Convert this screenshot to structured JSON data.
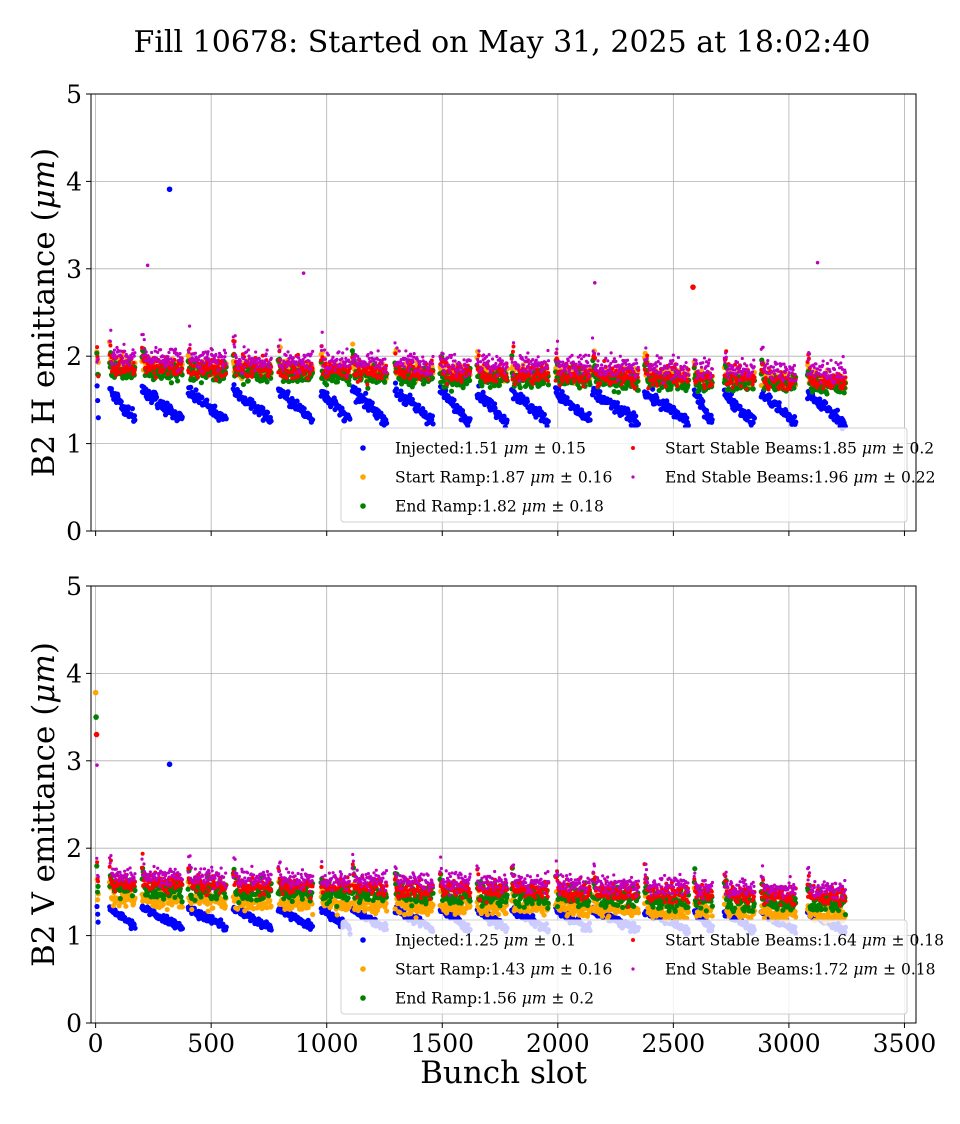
{
  "title": "Fill 10678: Started on May 31, 2025 at 18:02:40",
  "chart_data": [
    {
      "type": "scatter",
      "ylabel_base": "B2 H emittance (",
      "ylabel_unit": "μm",
      "ylabel_close": ")",
      "xlabel": "",
      "xlim": [
        -20,
        3550
      ],
      "ylim": [
        0,
        5
      ],
      "xticks": [
        0,
        500,
        1000,
        1500,
        2000,
        2500,
        3000,
        3500
      ],
      "yticks": [
        0,
        1,
        2,
        3,
        4,
        5
      ],
      "show_xtick_labels": false,
      "grid": true,
      "legend_position": "lower-right",
      "series": [
        {
          "name": "Injected",
          "mean": 1.51,
          "std": 0.15,
          "color": "#0000ff",
          "base": 1.62,
          "drop": 0.34
        },
        {
          "name": "Start Ramp",
          "mean": 1.87,
          "std": 0.16,
          "color": "#ffa500",
          "base": 1.9,
          "drop": 0.0
        },
        {
          "name": "End Ramp",
          "mean": 1.82,
          "std": 0.18,
          "color": "#008000",
          "base": 1.84,
          "drop": 0.0
        },
        {
          "name": "Start Stable Beams",
          "mean": 1.85,
          "std": 0.2,
          "color": "#ff0000",
          "base": 1.9,
          "drop": 0.0
        },
        {
          "name": "End Stable Beams",
          "mean": 1.96,
          "std": 0.22,
          "color": "#bf00bf",
          "base": 2.0,
          "drop": 0.0
        }
      ],
      "outliers": [
        {
          "x": 320,
          "y": 3.91,
          "series": 0
        },
        {
          "x": 2585,
          "y": 2.79,
          "series": 3
        },
        {
          "x": 3124,
          "y": 3.07,
          "series": 4
        },
        {
          "x": 225,
          "y": 3.04,
          "series": 4
        },
        {
          "x": 900,
          "y": 2.95,
          "series": 4
        },
        {
          "x": 2160,
          "y": 2.84,
          "series": 4
        }
      ]
    },
    {
      "type": "scatter",
      "ylabel_base": "B2 V emittance (",
      "ylabel_unit": "μm",
      "ylabel_close": ")",
      "xlabel": "Bunch slot",
      "xlim": [
        -20,
        3550
      ],
      "ylim": [
        0,
        5
      ],
      "xticks": [
        0,
        500,
        1000,
        1500,
        2000,
        2500,
        3000,
        3500
      ],
      "yticks": [
        0,
        1,
        2,
        3,
        4,
        5
      ],
      "show_xtick_labels": true,
      "grid": true,
      "legend_position": "lower-right",
      "series": [
        {
          "name": "Injected",
          "mean": 1.25,
          "std": 0.1,
          "color": "#0000ff",
          "base": 1.32,
          "drop": 0.22
        },
        {
          "name": "Start Ramp",
          "mean": 1.43,
          "std": 0.16,
          "color": "#ffa500",
          "base": 1.42,
          "drop": 0.0
        },
        {
          "name": "End Ramp",
          "mean": 1.56,
          "std": 0.2,
          "color": "#008000",
          "base": 1.55,
          "drop": 0.0
        },
        {
          "name": "Start Stable Beams",
          "mean": 1.64,
          "std": 0.18,
          "color": "#ff0000",
          "base": 1.62,
          "drop": 0.0
        },
        {
          "name": "End Stable Beams",
          "mean": 1.72,
          "std": 0.18,
          "color": "#bf00bf",
          "base": 1.7,
          "drop": 0.0
        }
      ],
      "outliers": [
        {
          "x": 320,
          "y": 2.96,
          "series": 0
        },
        {
          "x": 0,
          "y": 3.78,
          "series": 1
        },
        {
          "x": 2,
          "y": 3.5,
          "series": 2
        },
        {
          "x": 4,
          "y": 3.3,
          "series": 3
        },
        {
          "x": 6,
          "y": 2.95,
          "series": 4
        }
      ]
    }
  ],
  "bunch_trains": [
    [
      5,
      12
    ],
    [
      60,
      170
    ],
    [
      200,
      375
    ],
    [
      400,
      565
    ],
    [
      595,
      760
    ],
    [
      790,
      940
    ],
    [
      975,
      1100
    ],
    [
      1110,
      1260
    ],
    [
      1295,
      1460
    ],
    [
      1490,
      1620
    ],
    [
      1650,
      1780
    ],
    [
      1800,
      1960
    ],
    [
      1990,
      2140
    ],
    [
      2150,
      2350
    ],
    [
      2375,
      2565
    ],
    [
      2590,
      2670
    ],
    [
      2720,
      2850
    ],
    [
      2880,
      3030
    ],
    [
      3080,
      3245
    ]
  ]
}
